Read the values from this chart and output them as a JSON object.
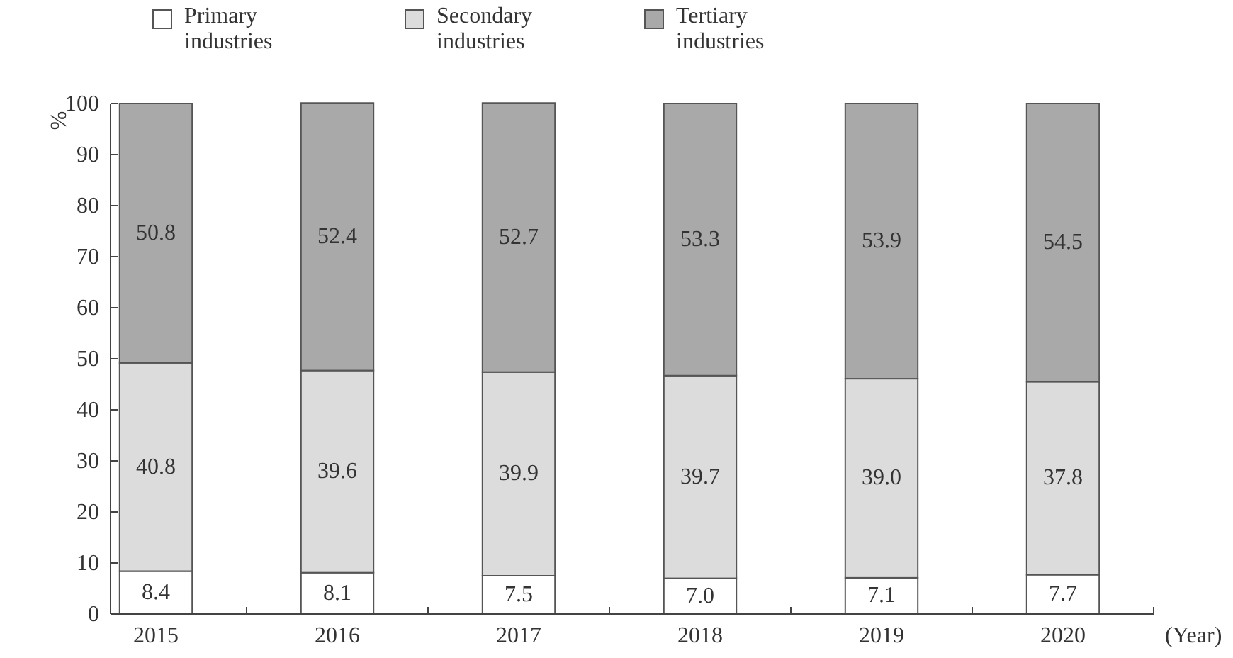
{
  "chart_data": {
    "type": "bar",
    "stacked": true,
    "xlabel": "(Year)",
    "ylabel": "%",
    "categories": [
      "2015",
      "2016",
      "2017",
      "2018",
      "2019",
      "2020"
    ],
    "series": [
      {
        "name": "Primary industries",
        "color": "#ffffff",
        "values": [
          8.4,
          8.1,
          7.5,
          7.0,
          7.1,
          7.7
        ],
        "value_labels": [
          "8.4",
          "8.1",
          "7.5",
          "7.0",
          "7.1",
          "7.7"
        ]
      },
      {
        "name": "Secondary industries",
        "color": "#dcdcdc",
        "values": [
          40.8,
          39.6,
          39.9,
          39.7,
          39.0,
          37.8
        ],
        "value_labels": [
          "40.8",
          "39.6",
          "39.9",
          "39.7",
          "39.0",
          "37.8"
        ]
      },
      {
        "name": "Tertiary industries",
        "color": "#a9a9a9",
        "values": [
          50.8,
          52.4,
          52.7,
          53.3,
          53.9,
          54.5
        ],
        "value_labels": [
          "50.8",
          "52.4",
          "52.7",
          "53.3",
          "53.9",
          "54.5"
        ]
      }
    ],
    "ylim": [
      0,
      100
    ],
    "yticks": [
      0,
      10,
      20,
      30,
      40,
      50,
      60,
      70,
      80,
      90,
      100
    ],
    "legend": "top",
    "grid": false
  }
}
